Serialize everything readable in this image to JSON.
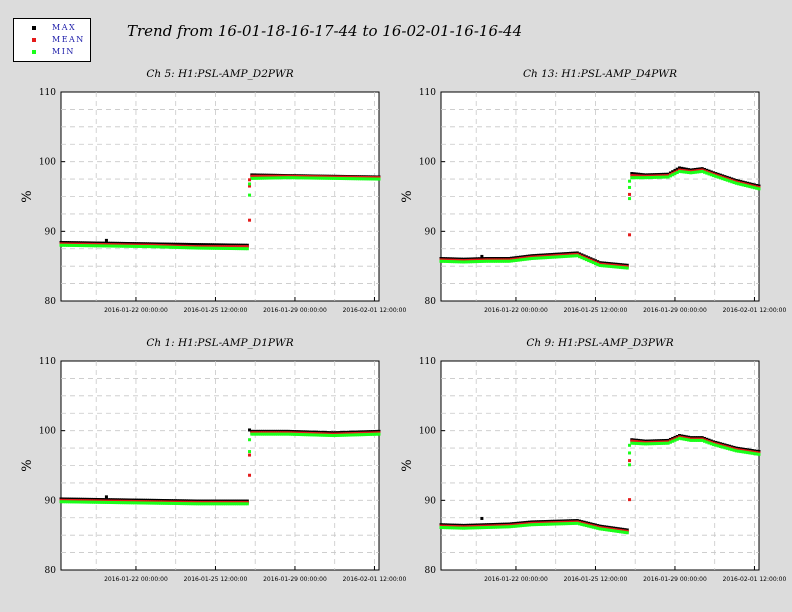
{
  "title": "Trend from 16-01-18-16-17-44 to 16-02-01-16-16-44",
  "legend": [
    {
      "label": "MAX",
      "color": "#000000"
    },
    {
      "label": "MEAN",
      "color": "#e41a1a"
    },
    {
      "label": "MIN",
      "color": "#1aff1a"
    }
  ],
  "colors": {
    "background": "#dcdcdc",
    "plot_area": "#ffffff",
    "grid": "#c8c8c8",
    "legend_text": "#1a1aa8"
  },
  "chart_data": [
    {
      "type": "scatter",
      "title": "Ch 5: H1:PSL-AMP_D2PWR",
      "ylabel": "%",
      "ylim": [
        80,
        110
      ],
      "yticks": [
        80,
        90,
        100,
        110
      ],
      "xlim": [
        0,
        14
      ],
      "xticks": [
        {
          "x": 3.3,
          "label": "2016-01-22 00:00:00"
        },
        {
          "x": 6.8,
          "label": "2016-01-25 12:00:00"
        },
        {
          "x": 10.3,
          "label": "2016-01-29 00:00:00"
        },
        {
          "x": 13.8,
          "label": "2016-02-01 12:00:00"
        }
      ],
      "grid": true,
      "series": [
        {
          "name": "MAX",
          "x": [
            0,
            2,
            4,
            6,
            8.3,
            8.4,
            10,
            12,
            14
          ],
          "y": [
            88.4,
            88.3,
            88.2,
            88.1,
            88.0,
            98.1,
            98.0,
            97.9,
            97.8
          ]
        },
        {
          "name": "MEAN",
          "x": [
            0,
            2,
            4,
            6,
            8.3,
            8.4,
            10,
            12,
            14
          ],
          "y": [
            88.2,
            88.1,
            88.0,
            87.8,
            87.8,
            97.9,
            97.9,
            97.8,
            97.7
          ]
        },
        {
          "name": "MIN",
          "x": [
            0,
            2,
            4,
            6,
            8.3,
            8.4,
            10,
            12,
            14
          ],
          "y": [
            88.0,
            87.9,
            87.8,
            87.6,
            87.5,
            97.6,
            97.7,
            97.6,
            97.5
          ]
        }
      ],
      "spikes": [
        {
          "series": "MAX",
          "x": 2.0,
          "y": 88.7
        },
        {
          "series": "MEAN",
          "x": 8.3,
          "y": 91.6
        },
        {
          "series": "MEAN",
          "x": 8.3,
          "y": 96.5
        },
        {
          "series": "MEAN",
          "x": 8.3,
          "y": 97.4
        },
        {
          "series": "MIN",
          "x": 8.3,
          "y": 95.2
        },
        {
          "series": "MIN",
          "x": 8.3,
          "y": 96.8
        }
      ]
    },
    {
      "type": "scatter",
      "title": "Ch 13: H1:PSL-AMP_D4PWR",
      "ylabel": "%",
      "ylim": [
        80,
        110
      ],
      "yticks": [
        80,
        90,
        100,
        110
      ],
      "xlim": [
        0,
        14
      ],
      "xticks": [
        {
          "x": 3.3,
          "label": "2016-01-22 00:00:00"
        },
        {
          "x": 6.8,
          "label": "2016-01-25 12:00:00"
        },
        {
          "x": 10.3,
          "label": "2016-01-29 00:00:00"
        },
        {
          "x": 13.8,
          "label": "2016-02-01 12:00:00"
        }
      ],
      "grid": true,
      "series": [
        {
          "name": "MAX",
          "x": [
            0,
            1,
            2,
            3,
            4,
            5,
            6,
            7,
            8.3,
            8.4,
            9,
            10,
            10.5,
            11,
            11.5,
            12,
            13,
            14
          ],
          "y": [
            86.1,
            86.0,
            86.1,
            86.1,
            86.5,
            86.7,
            86.9,
            85.5,
            85.1,
            98.3,
            98.1,
            98.2,
            99.1,
            98.8,
            99.0,
            98.4,
            97.3,
            96.5
          ]
        },
        {
          "name": "MEAN",
          "x": [
            0,
            1,
            2,
            3,
            4,
            5,
            6,
            7,
            8.3,
            8.4,
            9,
            10,
            10.5,
            11,
            11.5,
            12,
            13,
            14
          ],
          "y": [
            85.9,
            85.8,
            85.9,
            85.9,
            86.3,
            86.5,
            86.7,
            85.3,
            84.9,
            98.0,
            97.9,
            98.0,
            98.8,
            98.6,
            98.8,
            98.2,
            97.1,
            96.3
          ]
        },
        {
          "name": "MIN",
          "x": [
            0,
            1,
            2,
            3,
            4,
            5,
            6,
            7,
            8.3,
            8.4,
            9,
            10,
            10.5,
            11,
            11.5,
            12,
            13,
            14
          ],
          "y": [
            85.7,
            85.6,
            85.7,
            85.7,
            86.1,
            86.3,
            86.5,
            85.1,
            84.7,
            97.7,
            97.7,
            97.8,
            98.6,
            98.4,
            98.6,
            98.0,
            96.9,
            96.1
          ]
        }
      ],
      "spikes": [
        {
          "series": "MAX",
          "x": 1.8,
          "y": 86.4
        },
        {
          "series": "MEAN",
          "x": 8.3,
          "y": 89.5
        },
        {
          "series": "MEAN",
          "x": 8.3,
          "y": 95.3
        },
        {
          "series": "MIN",
          "x": 8.3,
          "y": 94.7
        },
        {
          "series": "MIN",
          "x": 8.3,
          "y": 96.3
        },
        {
          "series": "MIN",
          "x": 8.3,
          "y": 97.2
        }
      ]
    },
    {
      "type": "scatter",
      "title": "Ch 1: H1:PSL-AMP_D1PWR",
      "ylabel": "%",
      "ylim": [
        80,
        110
      ],
      "yticks": [
        80,
        90,
        100,
        110
      ],
      "xlim": [
        0,
        14
      ],
      "xticks": [
        {
          "x": 3.3,
          "label": "2016-01-22 00:00:00"
        },
        {
          "x": 6.8,
          "label": "2016-01-25 12:00:00"
        },
        {
          "x": 10.3,
          "label": "2016-01-29 00:00:00"
        },
        {
          "x": 13.8,
          "label": "2016-02-01 12:00:00"
        }
      ],
      "grid": true,
      "series": [
        {
          "name": "MAX",
          "x": [
            0,
            2,
            4,
            6,
            8.3,
            8.4,
            10,
            12,
            14
          ],
          "y": [
            90.2,
            90.1,
            90.0,
            89.9,
            89.9,
            99.9,
            99.9,
            99.7,
            99.9
          ]
        },
        {
          "name": "MEAN",
          "x": [
            0,
            2,
            4,
            6,
            8.3,
            8.4,
            10,
            12,
            14
          ],
          "y": [
            90.0,
            89.9,
            89.8,
            89.7,
            89.7,
            99.7,
            99.7,
            99.5,
            99.7
          ]
        },
        {
          "name": "MIN",
          "x": [
            0,
            2,
            4,
            6,
            8.3,
            8.4,
            10,
            12,
            14
          ],
          "y": [
            89.8,
            89.7,
            89.6,
            89.5,
            89.5,
            99.5,
            99.5,
            99.3,
            99.5
          ]
        }
      ],
      "spikes": [
        {
          "series": "MAX",
          "x": 2.0,
          "y": 90.5
        },
        {
          "series": "MAX",
          "x": 8.3,
          "y": 100.1
        },
        {
          "series": "MEAN",
          "x": 8.3,
          "y": 93.6
        },
        {
          "series": "MEAN",
          "x": 8.3,
          "y": 96.5
        },
        {
          "series": "MIN",
          "x": 8.3,
          "y": 97.0
        },
        {
          "series": "MIN",
          "x": 8.3,
          "y": 98.7
        }
      ]
    },
    {
      "type": "scatter",
      "title": "Ch 9: H1:PSL-AMP_D3PWR",
      "ylabel": "%",
      "ylim": [
        80,
        110
      ],
      "yticks": [
        80,
        90,
        100,
        110
      ],
      "xlim": [
        0,
        14
      ],
      "xticks": [
        {
          "x": 3.3,
          "label": "2016-01-22 00:00:00"
        },
        {
          "x": 6.8,
          "label": "2016-01-25 12:00:00"
        },
        {
          "x": 10.3,
          "label": "2016-01-29 00:00:00"
        },
        {
          "x": 13.8,
          "label": "2016-02-01 12:00:00"
        }
      ],
      "grid": true,
      "series": [
        {
          "name": "MAX",
          "x": [
            0,
            1,
            2,
            3,
            4,
            5,
            6,
            7,
            8.3,
            8.4,
            9,
            10,
            10.5,
            11,
            11.5,
            12,
            13,
            14
          ],
          "y": [
            86.5,
            86.4,
            86.5,
            86.6,
            86.9,
            87.0,
            87.1,
            86.3,
            85.7,
            98.7,
            98.5,
            98.6,
            99.3,
            99.0,
            99.0,
            98.4,
            97.5,
            97.0
          ]
        },
        {
          "name": "MEAN",
          "x": [
            0,
            1,
            2,
            3,
            4,
            5,
            6,
            7,
            8.3,
            8.4,
            9,
            10,
            10.5,
            11,
            11.5,
            12,
            13,
            14
          ],
          "y": [
            86.3,
            86.2,
            86.3,
            86.4,
            86.7,
            86.8,
            86.9,
            86.1,
            85.5,
            98.5,
            98.3,
            98.4,
            99.1,
            98.8,
            98.8,
            98.2,
            97.3,
            96.8
          ]
        },
        {
          "name": "MIN",
          "x": [
            0,
            1,
            2,
            3,
            4,
            5,
            6,
            7,
            8.3,
            8.4,
            9,
            10,
            10.5,
            11,
            11.5,
            12,
            13,
            14
          ],
          "y": [
            86.1,
            86.0,
            86.1,
            86.2,
            86.5,
            86.6,
            86.7,
            85.9,
            85.3,
            98.2,
            98.1,
            98.2,
            98.9,
            98.6,
            98.6,
            98.0,
            97.1,
            96.6
          ]
        }
      ],
      "spikes": [
        {
          "series": "MAX",
          "x": 1.8,
          "y": 87.4
        },
        {
          "series": "MEAN",
          "x": 8.3,
          "y": 90.1
        },
        {
          "series": "MEAN",
          "x": 8.3,
          "y": 95.7
        },
        {
          "series": "MIN",
          "x": 8.3,
          "y": 95.1
        },
        {
          "series": "MIN",
          "x": 8.3,
          "y": 96.8
        },
        {
          "series": "MIN",
          "x": 8.3,
          "y": 97.9
        }
      ]
    }
  ]
}
